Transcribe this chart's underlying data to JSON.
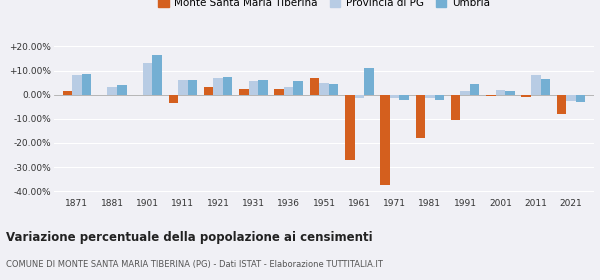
{
  "years": [
    1871,
    1881,
    1901,
    1911,
    1921,
    1931,
    1936,
    1951,
    1961,
    1971,
    1981,
    1991,
    2001,
    2011,
    2021
  ],
  "monte": [
    1.5,
    -0.3,
    -0.3,
    -3.5,
    3.0,
    2.5,
    2.5,
    7.0,
    -27.0,
    -37.5,
    -18.0,
    -10.5,
    -0.5,
    -1.0,
    -8.0
  ],
  "provincia": [
    8.0,
    3.0,
    13.0,
    6.0,
    7.0,
    5.5,
    3.0,
    5.0,
    -1.5,
    -1.5,
    -1.5,
    1.5,
    2.0,
    8.0,
    -2.5
  ],
  "umbria": [
    8.5,
    4.0,
    16.5,
    6.0,
    7.5,
    6.0,
    5.5,
    4.5,
    11.0,
    -2.0,
    -2.0,
    4.5,
    1.5,
    6.5,
    -3.0
  ],
  "monte_color": "#d45f1e",
  "provincia_color": "#b8cce4",
  "umbria_color": "#74afd3",
  "title": "Variazione percentuale della popolazione ai censimenti",
  "subtitle": "COMUNE DI MONTE SANTA MARIA TIBERINA (PG) - Dati ISTAT - Elaborazione TUTTITALIA.IT",
  "legend_labels": [
    "Monte Santa Maria Tiberina",
    "Provincia di PG",
    "Umbria"
  ],
  "ylim": [
    -42,
    23
  ],
  "yticks": [
    -40,
    -30,
    -20,
    -10,
    0,
    10,
    20
  ],
  "ytick_labels": [
    "-40.00%",
    "-30.00%",
    "-20.00%",
    "-10.00%",
    "0.00%",
    "+10.00%",
    "+20.00%"
  ],
  "bg_color": "#f0f0f5",
  "bar_width": 0.27
}
